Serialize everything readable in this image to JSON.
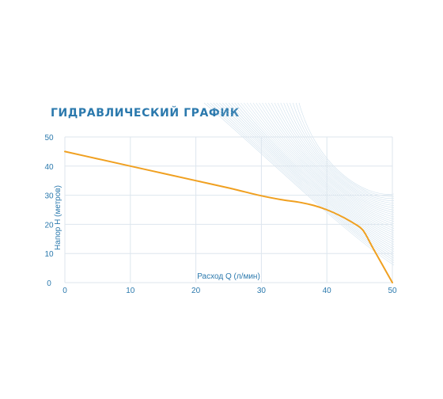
{
  "chart_data": {
    "type": "line",
    "title": "ГИДРАВЛИЧЕСКИЙ ГРАФИК",
    "xlabel": "Расход Q (л/мин)",
    "ylabel": "Напор Н (метров)",
    "xlim": [
      0,
      50
    ],
    "ylim": [
      0,
      50
    ],
    "xticks": [
      "0",
      "10",
      "20",
      "30",
      "40",
      "50"
    ],
    "yticks": [
      "0",
      "10",
      "20",
      "30",
      "40",
      "50"
    ],
    "grid": true,
    "series": [
      {
        "color": "#f0a020",
        "x": [
          0,
          5,
          10,
          15,
          20,
          25,
          30,
          33,
          36,
          38,
          40,
          42,
          44,
          45.5,
          47,
          48.5,
          50
        ],
        "y": [
          45,
          42.5,
          40,
          37.5,
          35,
          32.5,
          29.8,
          28.5,
          27.5,
          26.5,
          25,
          23,
          20.5,
          18,
          12,
          6,
          0
        ]
      }
    ]
  },
  "colors": {
    "accent": "#2b79ad",
    "grid": "#dde6ee",
    "curve": "#f0a020",
    "decor": "#a9c8de"
  }
}
